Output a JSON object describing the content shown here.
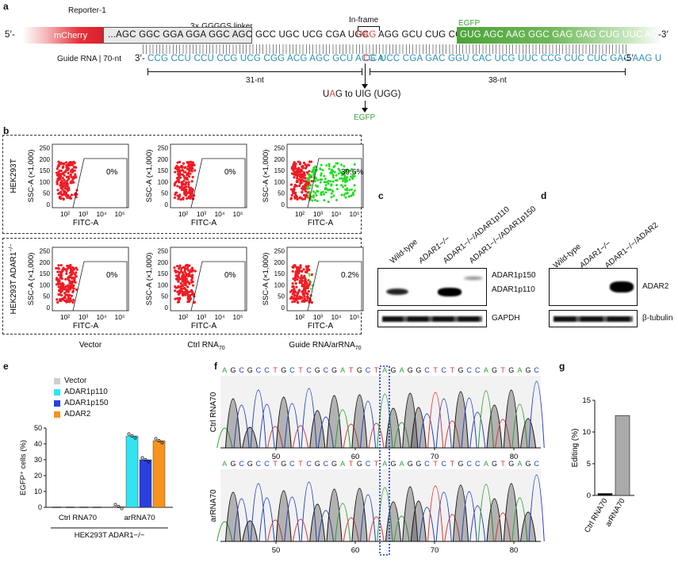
{
  "panel_a": {
    "letter": "a",
    "reporter_label": "Reporter-1",
    "five_prime": "5′-",
    "three_prime": "-3′",
    "mcherry": "mCherry",
    "linker_title": "3× GGGGS linker",
    "inframe_title": "In-frame",
    "egfp_title": "EGFP",
    "seq_linker": "...AGC GGC GGA GGA GGC AGC",
    "seq_mid1": "GCC UGC UCG CGA UGC",
    "seq_uag": "UAG",
    "seq_mid2": "AGG GCU CUG CCA",
    "seq_egfp": "GUG AGC AAG GGC GAG GAG CUG UUC ACC..",
    "guide_label": "Guide RNA | 70-nt",
    "guide_three": "3′-",
    "guide_seq_left": "CCG CCU CCU CCG UCG CGG ACG AGC GCU ACG A",
    "guide_c": "C",
    "guide_seq_right": "C UCC CGA GAC GGU CAC UCG UUC CCG CUC CUC GAC AAG U",
    "guide_five": "-5′",
    "left_span": "31-nt",
    "right_span": "38-nt",
    "edit_text_pre": "U",
    "edit_text_a": "A",
    "edit_text_post": "G to UIG (UGG)",
    "egfp_result": "EGFP"
  },
  "panel_b": {
    "letter": "b",
    "row1_ylabel_cell": "HEK293T",
    "row2_ylabel_cell": "HEK293T ADAR1",
    "row2_sup": "−/−",
    "ylabel": "SSC-A (×1,000)",
    "xlabel": "FITC-A",
    "yticks": [
      "0",
      "50",
      "100",
      "150",
      "200",
      "250"
    ],
    "xticks": [
      "10²",
      "10³",
      "10⁴",
      "10⁵"
    ],
    "row1_percents": [
      "0%",
      "0%",
      "39.6%"
    ],
    "row2_percents": [
      "0%",
      "0%",
      "0.2%"
    ],
    "columns": [
      "Vector",
      "Ctrl RNA",
      "Guide RNA/arRNA"
    ],
    "column_subs": [
      "",
      "70",
      "70"
    ]
  },
  "panel_c": {
    "letter": "c",
    "lanes": [
      "Wild-type",
      "ADAR1−/−",
      "ADAR1−/−/ADAR1p110",
      "ADAR1−/−/ADAR1p150"
    ],
    "band_labels": [
      "ADAR1p150",
      "ADAR1p110"
    ],
    "loading": "GAPDH"
  },
  "panel_d": {
    "letter": "d",
    "lanes": [
      "Wild-type",
      "ADAR1−/−",
      "ADAR1−/−/ADAR2"
    ],
    "band_label": "ADAR2",
    "loading": "β-tubulin"
  },
  "panel_e": {
    "letter": "e",
    "legend": [
      "Vector",
      "ADAR1p110",
      "ADAR1p150",
      "ADAR2"
    ],
    "ylabel": "EGFP⁺ cells (%)",
    "yticks": [
      "0",
      "10",
      "20",
      "30",
      "40",
      "50"
    ],
    "group_labels": [
      "Ctrl RNA70",
      "arRNA70"
    ],
    "cell_line": "HEK293T ADAR1−/−"
  },
  "panel_f": {
    "letter": "f",
    "top_seq": "AGCGCCTGCTCGCGATGCTAGAGGCTCTGCCAGTGAGC",
    "bottom_seq": "AGCGCCTGCTCGCGATGCTAGAGGCTCTGCCAGTGAGC",
    "top_label": "Ctrl RNA70",
    "bottom_label": "arRNA70",
    "top_xticks": [
      "50",
      "60",
      "70",
      "80"
    ],
    "bottom_xticks": [
      "50",
      "60",
      "70",
      "80"
    ]
  },
  "panel_g": {
    "letter": "g",
    "ylabel": "Editing (%)",
    "yticks": [
      "0",
      "5",
      "10",
      "15"
    ]
  },
  "colors": {
    "mcherry": "#e8323b",
    "egfp_dark": "#4ca23a",
    "egfp_light": "#a8d79a",
    "guide_blue": "#2b8fb3",
    "uag_red": "#e8473c",
    "cyan": "#33e3f2",
    "blue": "#2a3fe0",
    "orange": "#f7941d",
    "grey": "#cfcfcf"
  },
  "chart_data": [
    {
      "type": "bar",
      "panel": "e",
      "categories": [
        "Ctrl RNA70",
        "arRNA70"
      ],
      "series": [
        {
          "name": "Vector",
          "values": [
            0,
            0.5
          ]
        },
        {
          "name": "ADAR1p110",
          "values": [
            0,
            45
          ]
        },
        {
          "name": "ADAR1p150",
          "values": [
            0,
            30
          ]
        },
        {
          "name": "ADAR2",
          "values": [
            0,
            42
          ]
        }
      ],
      "ylabel": "EGFP⁺ cells (%)",
      "ylim": [
        0,
        50
      ]
    },
    {
      "type": "bar",
      "panel": "g",
      "categories": [
        "Ctrl RNA70",
        "arRNA70"
      ],
      "values": [
        0.3,
        12.6
      ],
      "ylabel": "Editing (%)",
      "ylim": [
        0,
        15
      ]
    }
  ]
}
